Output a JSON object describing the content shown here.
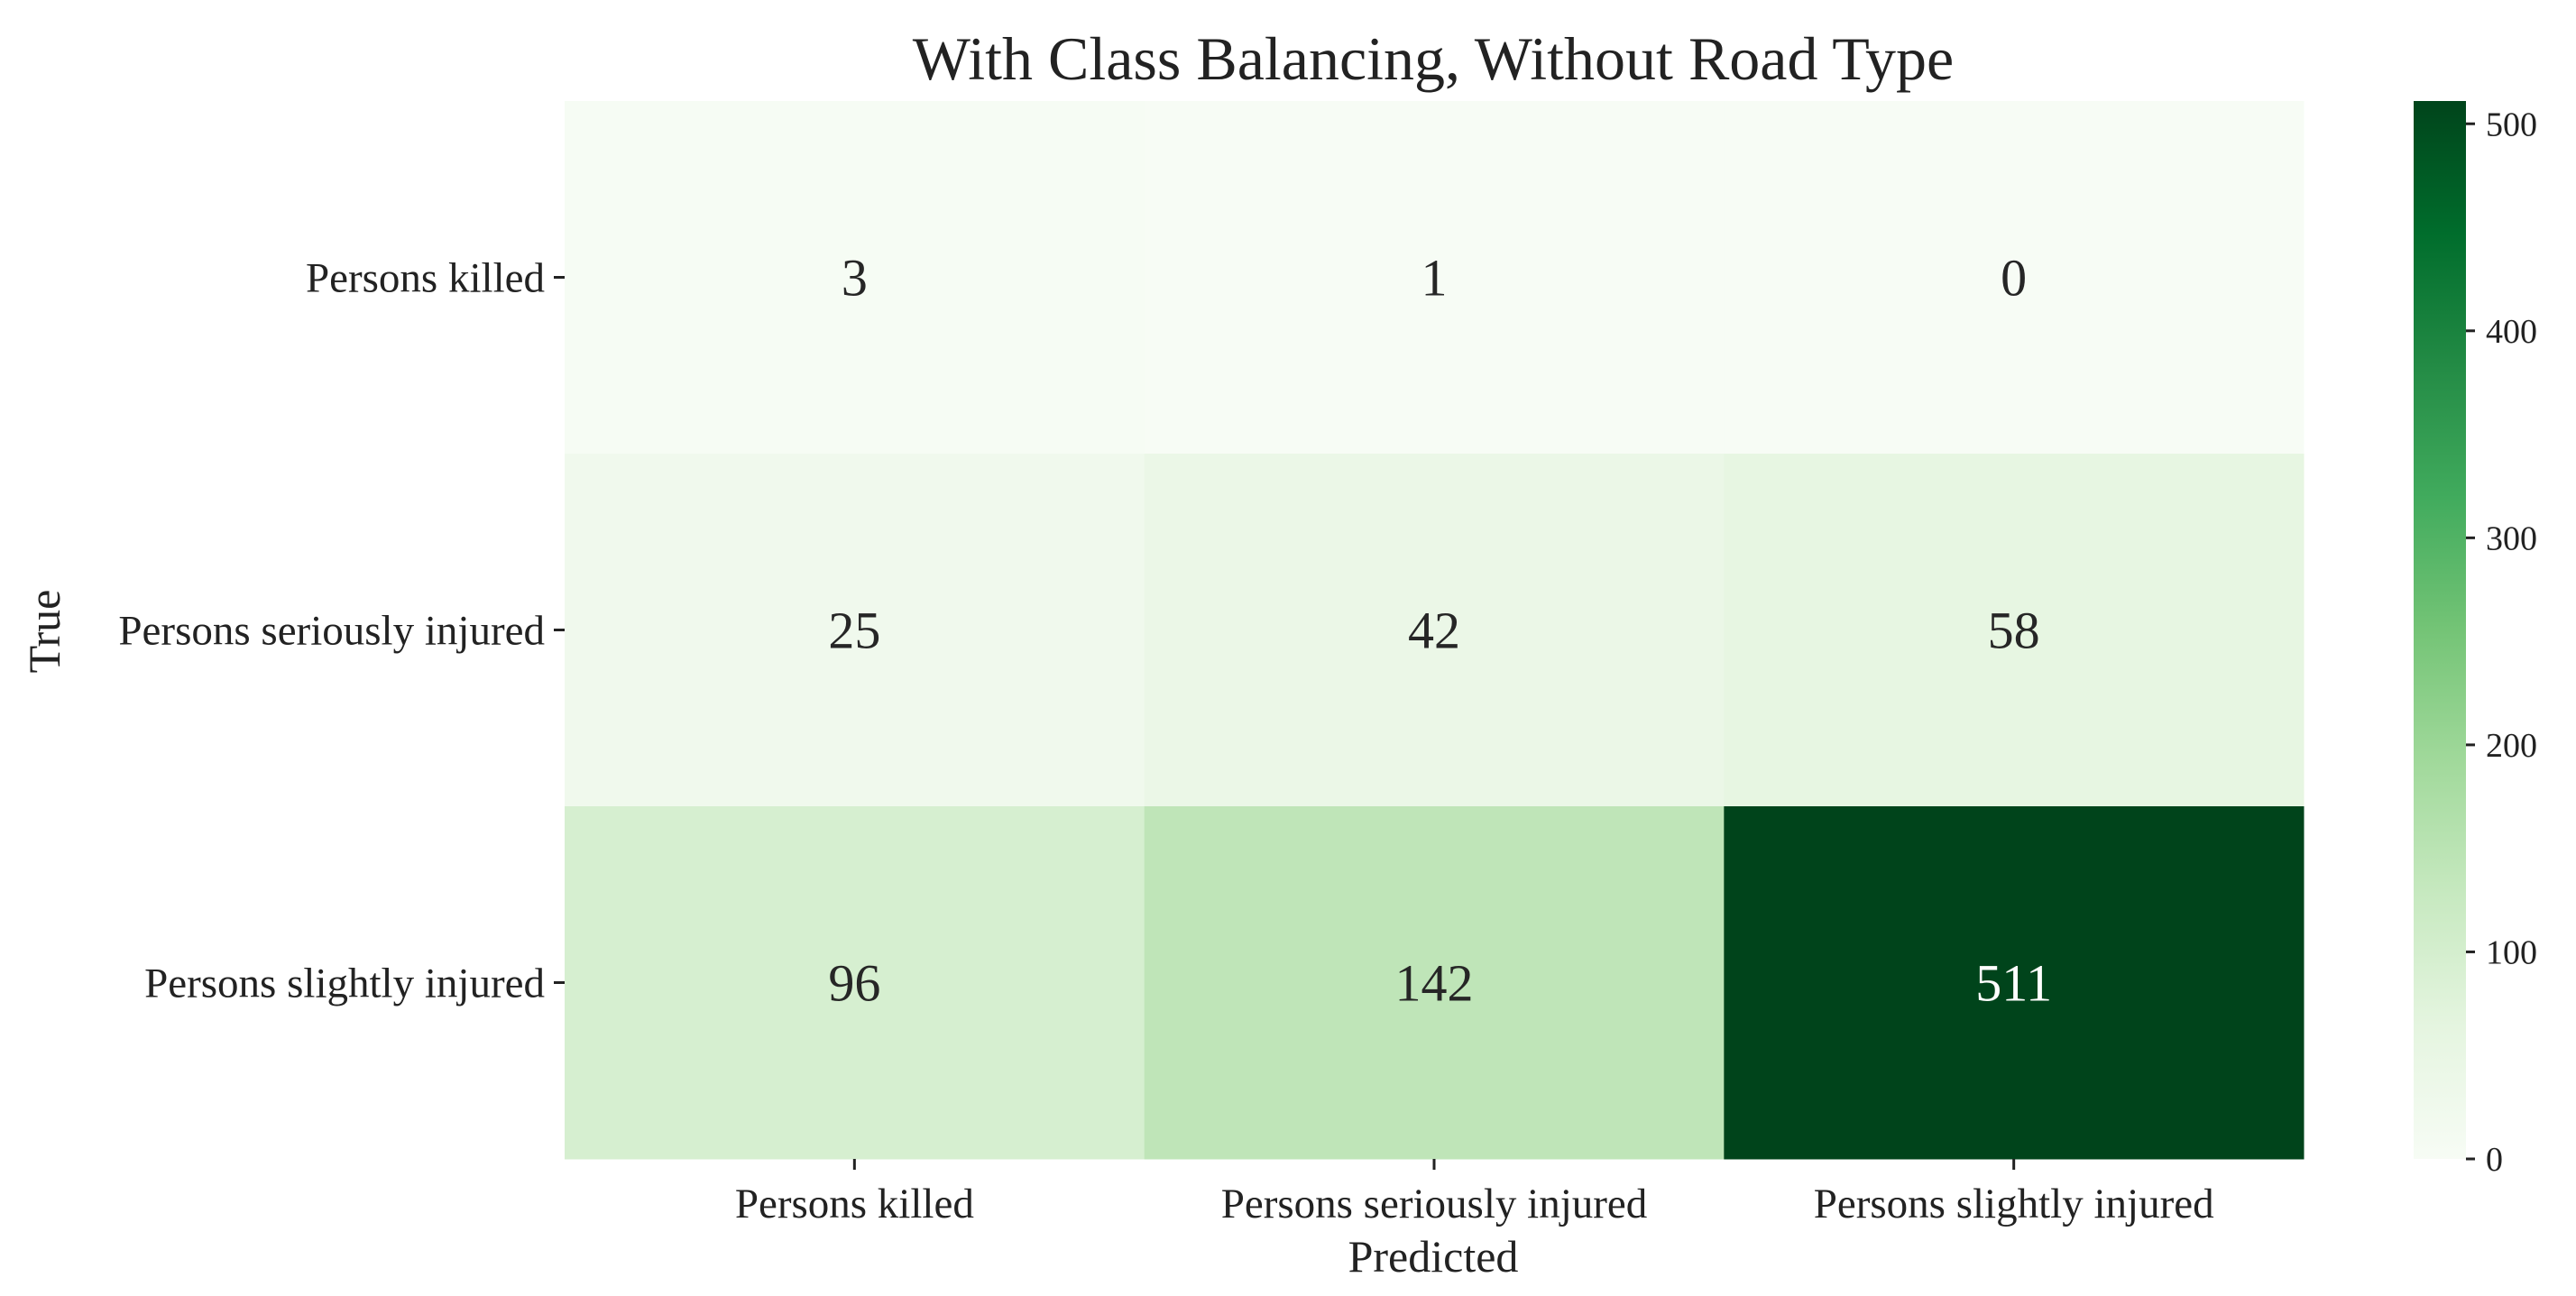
{
  "chart_data": {
    "type": "heatmap",
    "title": "With Class Balancing, Without Road Type",
    "xlabel": "Predicted",
    "ylabel": "True",
    "x_categories": [
      "Persons killed",
      "Persons seriously injured",
      "Persons slightly injured"
    ],
    "y_categories": [
      "Persons killed",
      "Persons seriously injured",
      "Persons slightly injured"
    ],
    "values": [
      [
        3,
        1,
        0
      ],
      [
        25,
        42,
        58
      ],
      [
        96,
        142,
        511
      ]
    ],
    "colormap": "Greens",
    "colorbar": {
      "min": 0,
      "max": 511,
      "ticks": [
        0,
        100,
        200,
        300,
        400,
        500
      ]
    },
    "grid": false,
    "legend": "colorbar-right"
  },
  "colors": {
    "low": "#f7fcf5",
    "high": "#00441b",
    "text_dark": "#262626",
    "text_light": "#ffffff"
  }
}
